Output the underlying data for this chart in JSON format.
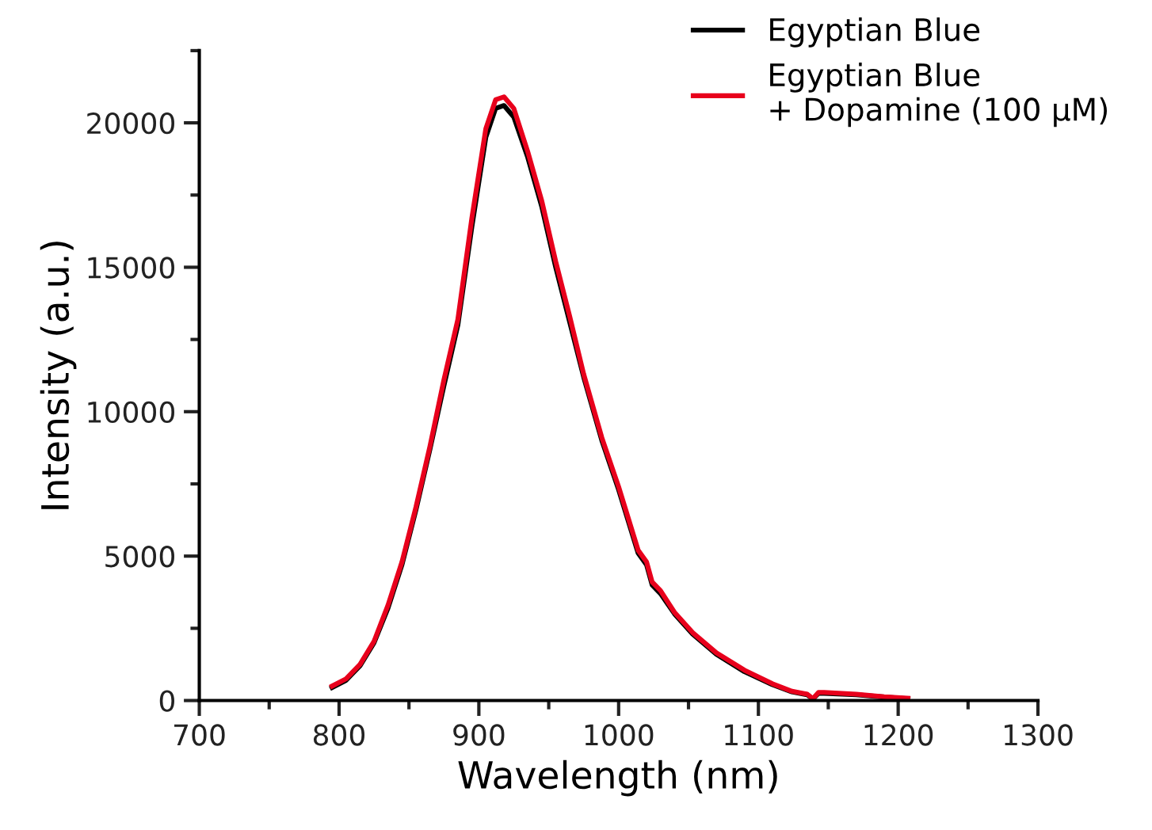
{
  "chart_data": {
    "type": "line",
    "xlabel": "Wavelength (nm)",
    "ylabel": "Intensity (a.u.)",
    "xlim": [
      700,
      1300
    ],
    "xticks": [
      700,
      800,
      900,
      1000,
      1100,
      1200,
      1300
    ],
    "ylim": [
      0,
      22500
    ],
    "yticks": [
      0,
      5000,
      10000,
      15000,
      20000
    ],
    "grid": false,
    "legend": "top right",
    "marker": "none",
    "line_style": "solid",
    "series": [
      {
        "name": "Egyptian Blue",
        "color": "#000000",
        "x": [
          795,
          805,
          815,
          825,
          835,
          845,
          855,
          865,
          875,
          885,
          895,
          905,
          912,
          918,
          925,
          935,
          945,
          955,
          965,
          975,
          988,
          1000,
          1014,
          1020,
          1024,
          1030,
          1040,
          1053,
          1070,
          1090,
          1110,
          1124,
          1135,
          1139,
          1143,
          1147,
          1170,
          1190,
          1207
        ],
        "values": [
          450,
          700,
          1200,
          2000,
          3200,
          4700,
          6600,
          8700,
          10900,
          13000,
          16400,
          19500,
          20500,
          20600,
          20200,
          18800,
          17100,
          15000,
          13100,
          11200,
          9000,
          7300,
          5100,
          4700,
          4000,
          3700,
          3000,
          2300,
          1600,
          1000,
          550,
          300,
          200,
          50,
          250,
          250,
          200,
          120,
          60
        ]
      },
      {
        "name": "Egyptian Blue\n+ Dopamine (100 μM)",
        "color": "#e8001c",
        "x": [
          795,
          805,
          815,
          825,
          835,
          845,
          855,
          865,
          875,
          885,
          895,
          905,
          912,
          918,
          925,
          935,
          945,
          955,
          965,
          975,
          988,
          1000,
          1014,
          1020,
          1024,
          1030,
          1040,
          1053,
          1070,
          1090,
          1110,
          1124,
          1135,
          1139,
          1143,
          1147,
          1170,
          1190,
          1207
        ],
        "values": [
          500,
          750,
          1250,
          2050,
          3300,
          4800,
          6700,
          8800,
          11100,
          13200,
          16700,
          19800,
          20800,
          20900,
          20500,
          19000,
          17300,
          15200,
          13300,
          11300,
          9100,
          7400,
          5200,
          4800,
          4100,
          3800,
          3050,
          2350,
          1650,
          1050,
          580,
          320,
          220,
          60,
          280,
          280,
          220,
          130,
          80
        ]
      }
    ]
  }
}
